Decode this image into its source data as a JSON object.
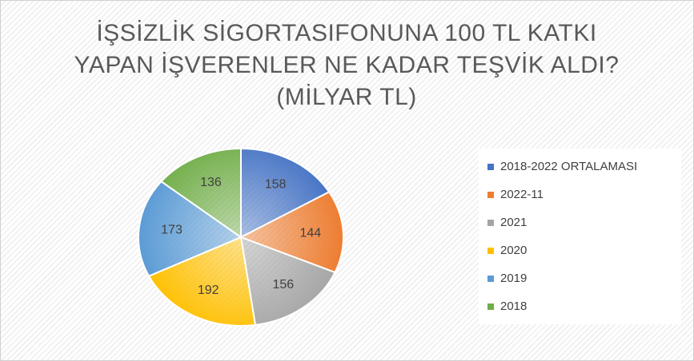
{
  "chart_data": {
    "type": "pie",
    "title": [
      "İŞSİZLİK SİGORTASIFONUNA 100 TL KATKI",
      "YAPAN İŞVERENLER NE KADAR TEŞVİK ALDI?",
      "(MİLYAR TL)"
    ],
    "categories": [
      "2018-2022 ORTALAMASI",
      "2022-11",
      "2021",
      "2020",
      "2019",
      "2018"
    ],
    "values": [
      158,
      144,
      156,
      192,
      173,
      136
    ],
    "colors": [
      "#4472c4",
      "#ed7d31",
      "#a5a5a5",
      "#ffc000",
      "#5b9bd5",
      "#70ad47"
    ],
    "legend": "right"
  }
}
